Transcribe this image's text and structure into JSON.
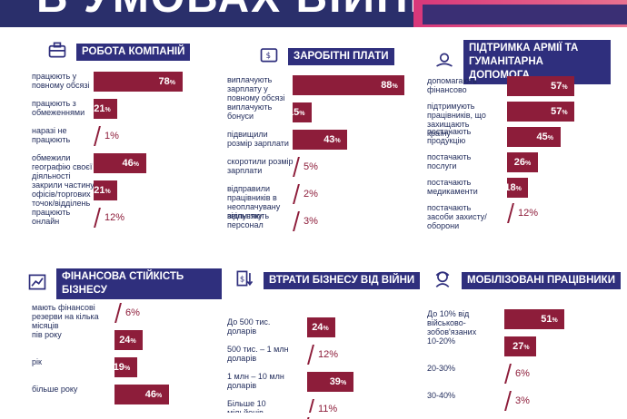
{
  "header": {
    "title": "В УМОВАХ ВІЙНИ"
  },
  "colors": {
    "bar": "#8d1d3a",
    "header_bg": "#2f2f7d"
  },
  "chart_data": [
    {
      "type": "bar",
      "title": "РОБОТА КОМПАНІЙ",
      "icon": "briefcase-icon",
      "categories": [
        "працюють у повному обсязі",
        "працюють з обмеженнями",
        "наразі не працюють",
        "обмежили географію своєї діяльності",
        "закрили частину офісів/торгових точок/відділень",
        "працюють онлайн"
      ],
      "values": [
        78,
        21,
        1,
        46,
        21,
        12
      ],
      "unit": "%"
    },
    {
      "type": "bar",
      "title": "ЗАРОБІТНІ ПЛАТИ",
      "icon": "wallet-icon",
      "categories": [
        "виплачують зарплату у повному обсязі",
        "виплачують бонуси",
        "підвищили розмір зарплати",
        "скоротили розмір зарплати",
        "відправили працівників в неоплачувану відпустку",
        "звільняють персонал"
      ],
      "values": [
        88,
        15,
        43,
        5,
        2,
        3
      ],
      "unit": "%"
    },
    {
      "type": "bar",
      "title": "ПІДТРИМКА АРМІЇ ТА ГУМАНІТАРНА ДОПОМОГА",
      "icon": "helping-hand-icon",
      "categories": [
        "допомагають фінансово",
        "підтримують працівників, що захищають країну",
        "постачають продукцію",
        "постачають послуги",
        "постачають медикаменти",
        "постачають засоби захисту/оборони"
      ],
      "values": [
        57,
        57,
        45,
        26,
        18,
        12
      ],
      "unit": "%"
    },
    {
      "type": "bar",
      "title": "ФІНАНСОВА СТІЙКІСТЬ БІЗНЕСУ",
      "icon": "finance-chart-icon",
      "categories": [
        "мають фінансові резерви на кілька місяців",
        "пів року",
        "рік",
        "більше року"
      ],
      "values": [
        6,
        24,
        19,
        46
      ],
      "unit": "%"
    },
    {
      "type": "bar",
      "title": "ВТРАТИ БІЗНЕСУ ВІД ВІЙНИ",
      "icon": "money-loss-icon",
      "categories": [
        "До 500 тис. доларів",
        "500 тис. – 1 млн доларів",
        "1 млн – 10 млн доларів",
        "Більше 10 мільйонів"
      ],
      "values": [
        24,
        12,
        39,
        11
      ],
      "unit": "%"
    },
    {
      "type": "bar",
      "title": "МОБІЛІЗОВАНІ ПРАЦІВНИКИ",
      "icon": "soldier-icon",
      "categories": [
        "До 10% від військово-зобов'язаних",
        "10-20%",
        "20-30%",
        "30-40%"
      ],
      "values": [
        51,
        27,
        6,
        3
      ],
      "unit": "%"
    }
  ]
}
